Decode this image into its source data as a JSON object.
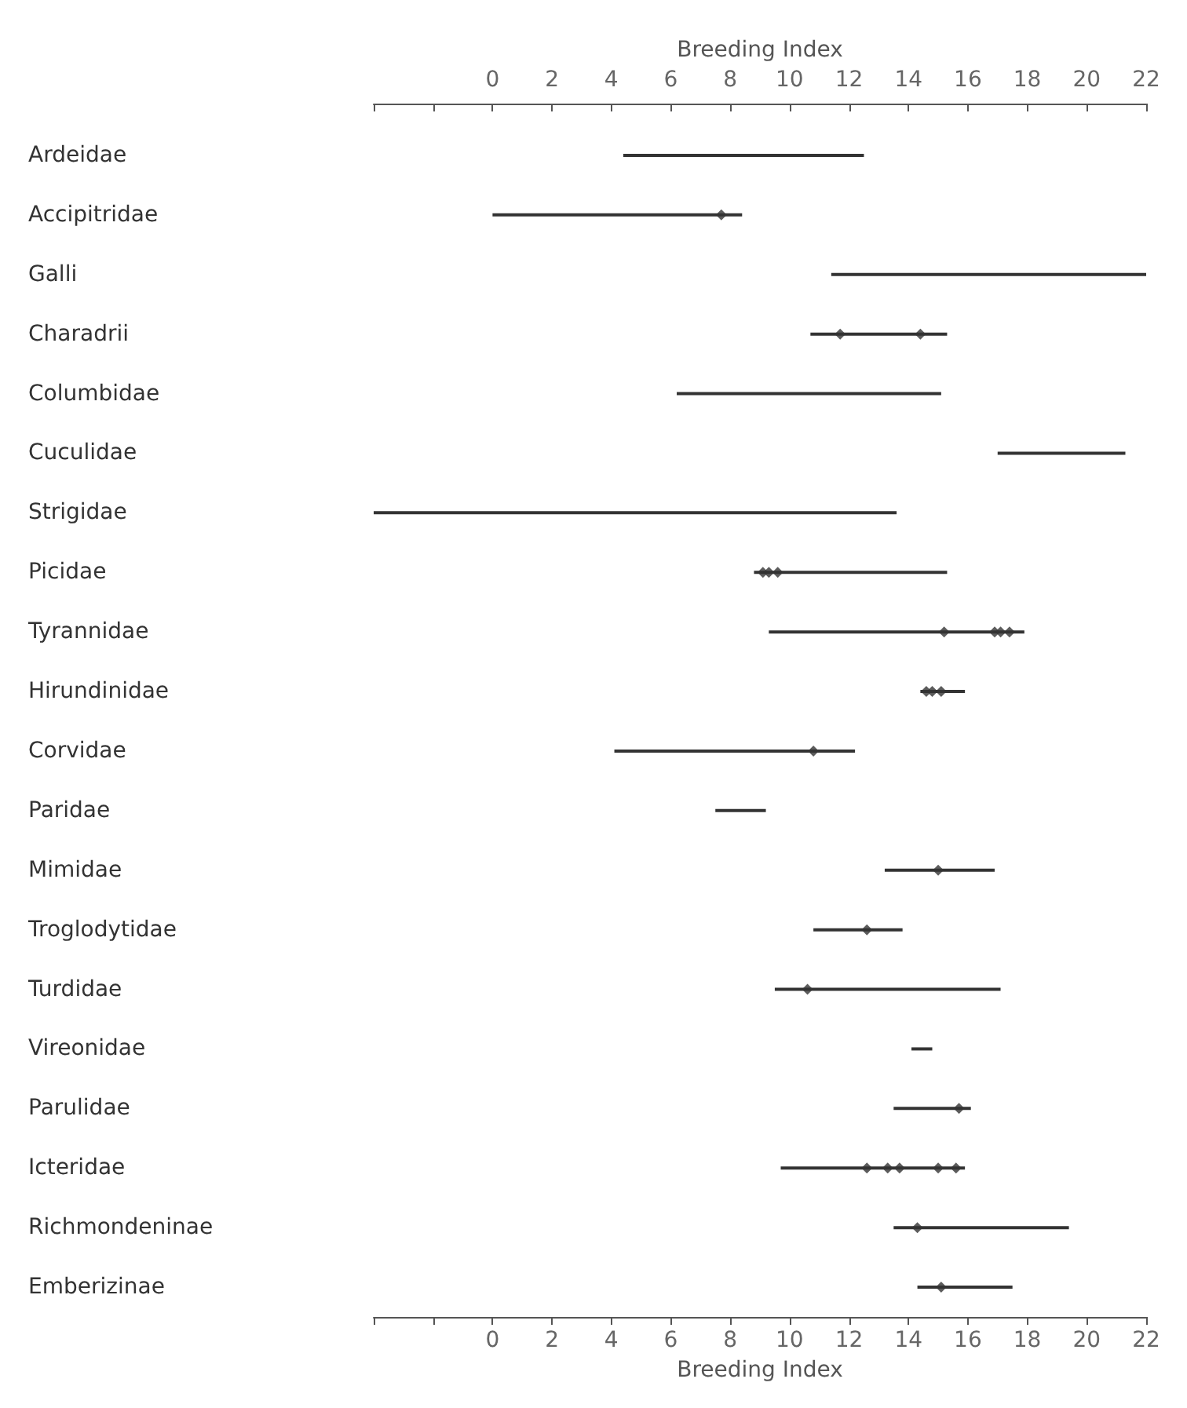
{
  "chart_data": {
    "type": "bar",
    "orientation": "horizontal",
    "xlabel": "Breeding Index",
    "x2label": "Breeding Index",
    "categories": [
      "Ardeidae",
      "Accipitridae",
      "Galli",
      "Charadrii",
      "Columbidae",
      "Cuculidae",
      "Strigidae",
      "Picidae",
      "Tyrannidae",
      "Hirundinidae",
      "Corvidae",
      "Paridae",
      "Mimidae",
      "Troglodytidae",
      "Turdidae",
      "Vireonidae",
      "Parulidae",
      "Icteridae",
      "Richmondeninae",
      "Emberizinae"
    ],
    "series": [
      {
        "color": "#333333",
        "base": [
          4.4,
          0,
          11.4,
          10.7,
          6.2,
          17.0,
          -4,
          8.8,
          9.3,
          14.4,
          4.1,
          7.5,
          13.2,
          10.8,
          9.5,
          14.1,
          13.5,
          9.7,
          13.5,
          14.3
        ],
        "values": [
          8.1,
          8.4,
          10.6,
          4.6,
          8.9,
          4.3,
          17.6,
          6.5,
          8.6,
          1.5,
          8.1,
          1.7,
          3.7,
          3.0,
          7.6,
          0.7,
          2.6,
          6.2,
          5.9,
          3.2
        ]
      },
      {
        "type": "scatter",
        "marker": "diamond",
        "color": "#333333",
        "x": [
          "Accipitridae",
          "Charadrii",
          "Charadrii",
          "Picidae",
          "Picidae",
          "Picidae",
          "Tyrannidae",
          "Tyrannidae",
          "Tyrannidae",
          "Tyrannidae",
          "Hirundinidae",
          "Hirundinidae",
          "Hirundinidae",
          "Corvidae",
          "Mimidae",
          "Troglodytidae",
          "Turdidae",
          "Parulidae",
          "Icteridae",
          "Icteridae",
          "Icteridae",
          "Icteridae",
          "Icteridae",
          "Richmondeninae",
          "Emberizinae"
        ],
        "values": [
          7.7,
          11.7,
          14.4,
          9.1,
          9.3,
          9.6,
          15.2,
          16.9,
          17.1,
          17.4,
          14.6,
          14.8,
          15.1,
          10.8,
          15.0,
          12.6,
          10.6,
          15.7,
          12.6,
          13.3,
          13.7,
          15.0,
          15.6,
          14.3,
          15.1
        ]
      }
    ],
    "xlim": [
      -4,
      22
    ],
    "xticks": [
      {
        "value": -4,
        "label": null
      },
      {
        "value": -2,
        "label": null
      },
      0,
      2,
      4,
      6,
      8,
      10,
      12,
      14,
      16,
      18,
      20,
      22
    ],
    "x2lim": [
      -4,
      22
    ],
    "x2ticks": [
      {
        "value": -4,
        "label": null
      },
      {
        "value": -2,
        "label": null
      },
      0,
      2,
      4,
      6,
      8,
      10,
      12,
      14,
      16,
      18,
      20,
      22
    ],
    "grid": false
  }
}
